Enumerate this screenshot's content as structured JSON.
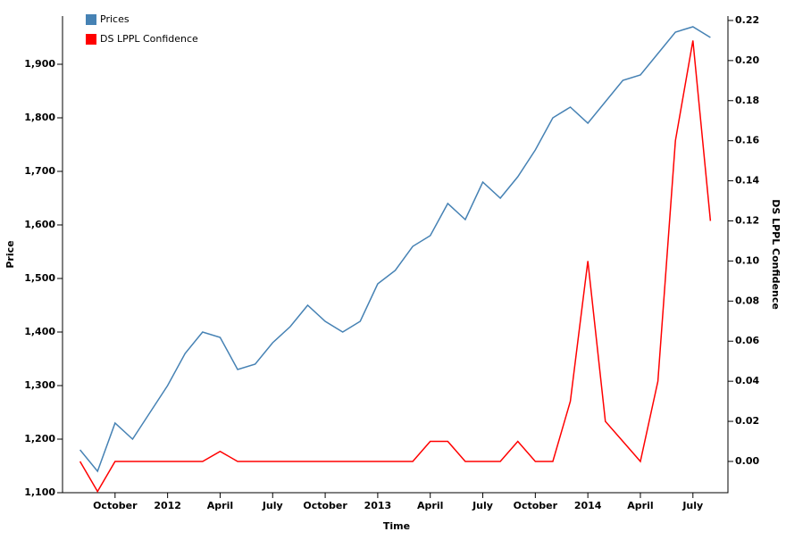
{
  "chart_data": {
    "type": "line",
    "x_label": "Time",
    "y_label": "Price",
    "y2_label": "DS LPPL Confidence",
    "x": [
      "2011-08",
      "2011-09",
      "2011-10",
      "2011-11",
      "2011-12",
      "2012-01",
      "2012-02",
      "2012-03",
      "2012-04",
      "2012-05",
      "2012-06",
      "2012-07",
      "2012-08",
      "2012-09",
      "2012-10",
      "2012-11",
      "2012-12",
      "2013-01",
      "2013-02",
      "2013-03",
      "2013-04",
      "2013-05",
      "2013-06",
      "2013-07",
      "2013-08",
      "2013-09",
      "2013-10",
      "2013-11",
      "2013-12",
      "2014-01",
      "2014-02",
      "2014-03",
      "2014-04",
      "2014-05",
      "2014-06",
      "2014-07",
      "2014-08"
    ],
    "series": [
      {
        "name": "Prices",
        "color": "#4682b4",
        "values": [
          1180,
          1140,
          1230,
          1200,
          1250,
          1300,
          1360,
          1400,
          1390,
          1330,
          1340,
          1380,
          1410,
          1450,
          1420,
          1400,
          1420,
          1490,
          1515,
          1560,
          1580,
          1640,
          1610,
          1680,
          1650,
          1690,
          1740,
          1800,
          1820,
          1790,
          1830,
          1870,
          1880,
          1920,
          1960,
          1970,
          1950
        ]
      },
      {
        "name": "DS LPPL Confidence",
        "color": "#ff0000",
        "axis": "y2",
        "values": [
          0,
          -0.015,
          0,
          0,
          0,
          0,
          0,
          0,
          0.005,
          0,
          0,
          0,
          0,
          0,
          0,
          0,
          0,
          0,
          0,
          0,
          0.01,
          0.01,
          0,
          0,
          0,
          0.01,
          0,
          0,
          0.03,
          0.1,
          0.02,
          0.01,
          0,
          0.04,
          0.16,
          0.21,
          0.12
        ]
      }
    ],
    "xlim": [
      "2011-07",
      "2014-09"
    ],
    "xticks": [
      {
        "value": "2011-10",
        "label": "October"
      },
      {
        "value": "2012-01",
        "label": "2012"
      },
      {
        "value": "2012-04",
        "label": "April"
      },
      {
        "value": "2012-07",
        "label": "July"
      },
      {
        "value": "2012-10",
        "label": "October"
      },
      {
        "value": "2013-01",
        "label": "2013"
      },
      {
        "value": "2013-04",
        "label": "April"
      },
      {
        "value": "2013-07",
        "label": "July"
      },
      {
        "value": "2013-10",
        "label": "October"
      },
      {
        "value": "2014-01",
        "label": "2014"
      },
      {
        "value": "2014-04",
        "label": "April"
      },
      {
        "value": "2014-07",
        "label": "July"
      }
    ],
    "ylim": [
      1100,
      1990
    ],
    "yticks": [
      {
        "value": 1100,
        "label": "1,100"
      },
      {
        "value": 1200,
        "label": "1,200"
      },
      {
        "value": 1300,
        "label": "1,300"
      },
      {
        "value": 1400,
        "label": "1,400"
      },
      {
        "value": 1500,
        "label": "1,500"
      },
      {
        "value": 1600,
        "label": "1,600"
      },
      {
        "value": 1700,
        "label": "1,700"
      },
      {
        "value": 1800,
        "label": "1,800"
      },
      {
        "value": 1900,
        "label": "1,900"
      }
    ],
    "y2lim": [
      -0.0156,
      0.2222
    ],
    "y2ticks": [
      {
        "value": 0,
        "label": "0.00"
      },
      {
        "value": 0.02,
        "label": "0.02"
      },
      {
        "value": 0.04,
        "label": "0.04"
      },
      {
        "value": 0.06,
        "label": "0.06"
      },
      {
        "value": 0.08,
        "label": "0.08"
      },
      {
        "value": 0.1,
        "label": "0.10"
      },
      {
        "value": 0.12,
        "label": "0.12"
      },
      {
        "value": 0.14,
        "label": "0.14"
      },
      {
        "value": 0.16,
        "label": "0.16"
      },
      {
        "value": 0.18,
        "label": "0.18"
      },
      {
        "value": 0.2,
        "label": "0.20"
      },
      {
        "value": 0.22,
        "label": "0.22"
      }
    ],
    "legend": "top-left",
    "grid": false
  }
}
